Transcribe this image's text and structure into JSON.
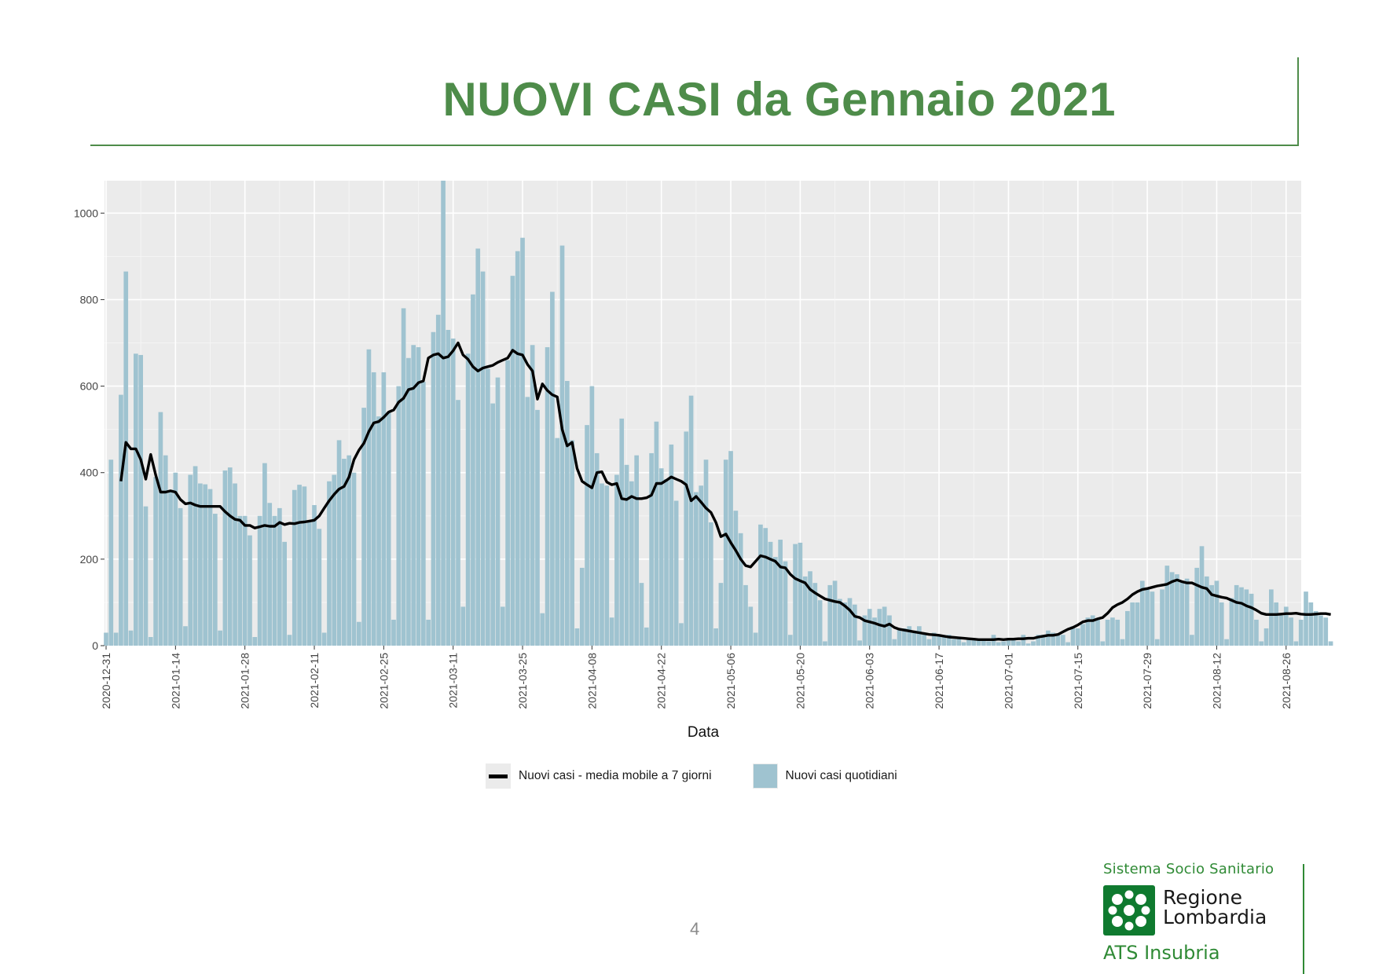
{
  "slide": {
    "title": "NUOVI CASI da Gennaio 2021",
    "page_number": "4"
  },
  "logo": {
    "tagline": "Sistema Socio Sanitario",
    "name_line1": "Regione",
    "name_line2": "Lombardia",
    "sub": "ATS Insubria",
    "brand_color": "#0f7a2f",
    "icon": "regione-lombardia-rosa-camuna-icon"
  },
  "legend": {
    "line_label": "Nuovi casi - media mobile a 7 giorni",
    "bar_label": "Nuovi casi quotidiani"
  },
  "colors": {
    "title": "#4e8c4a",
    "bars": "#9fc3d0",
    "line": "#000000",
    "panel": "#ebebeb",
    "grid": "#ffffff"
  },
  "chart_data": {
    "type": "bar",
    "xlabel": "Data",
    "ylabel": "",
    "ylim": [
      0,
      1075
    ],
    "yticks": [
      0,
      200,
      400,
      600,
      800,
      1000
    ],
    "x_tick_labels": [
      "2020-12-31",
      "2021-01-14",
      "2021-01-28",
      "2021-02-11",
      "2021-02-25",
      "2021-03-11",
      "2021-03-25",
      "2021-04-08",
      "2021-04-22",
      "2021-05-06",
      "2021-05-20",
      "2021-06-03",
      "2021-06-17",
      "2021-07-01",
      "2021-07-15",
      "2021-07-29",
      "2021-08-12",
      "2021-08-26"
    ],
    "grid": true,
    "legend_position": "bottom",
    "start_date": "2020-12-31",
    "series": [
      {
        "name": "Nuovi casi quotidiani",
        "type": "bar",
        "values": [
          30,
          430,
          30,
          580,
          865,
          35,
          675,
          672,
          322,
          20,
          390,
          540,
          440,
          360,
          400,
          318,
          45,
          395,
          415,
          375,
          373,
          362,
          305,
          35,
          405,
          412,
          375,
          300,
          300,
          255,
          20,
          300,
          422,
          330,
          300,
          318,
          240,
          25,
          360,
          372,
          368,
          285,
          325,
          270,
          30,
          380,
          395,
          475,
          432,
          440,
          400,
          55,
          550,
          685,
          632,
          530,
          632,
          540,
          60,
          600,
          780,
          665,
          695,
          690,
          610,
          60,
          725,
          765,
          1075,
          730,
          710,
          568,
          90,
          675,
          812,
          918,
          865,
          640,
          560,
          620,
          90,
          660,
          855,
          912,
          943,
          575,
          695,
          545,
          75,
          690,
          818,
          480,
          925,
          612,
          475,
          40,
          180,
          510,
          600,
          445,
          375,
          370,
          65,
          395,
          525,
          418,
          380,
          440,
          145,
          42,
          445,
          518,
          410,
          385,
          465,
          335,
          52,
          495,
          578,
          355,
          370,
          430,
          285,
          40,
          145,
          430,
          450,
          312,
          260,
          140,
          90,
          30,
          280,
          272,
          240,
          205,
          245,
          195,
          25,
          235,
          238,
          160,
          172,
          145,
          105,
          10,
          140,
          150,
          108,
          100,
          110,
          95,
          12,
          70,
          85,
          65,
          85,
          90,
          70,
          15,
          40,
          40,
          45,
          35,
          45,
          30,
          15,
          30,
          25,
          20,
          25,
          15,
          20,
          8,
          15,
          15,
          15,
          15,
          10,
          25,
          8,
          10,
          12,
          15,
          10,
          25,
          5,
          10,
          25,
          25,
          35,
          30,
          25,
          25,
          8,
          45,
          40,
          50,
          65,
          70,
          60,
          10,
          60,
          65,
          60,
          15,
          80,
          100,
          100,
          150,
          135,
          125,
          15,
          130,
          185,
          170,
          165,
          150,
          155,
          25,
          180,
          230,
          160,
          140,
          150,
          100,
          15,
          110,
          140,
          135,
          130,
          120,
          60,
          10,
          40,
          130,
          100,
          70,
          90,
          65,
          10,
          60,
          125,
          100,
          80,
          70,
          65,
          10
        ]
      },
      {
        "name": "Nuovi casi - media mobile a 7 giorni",
        "type": "line",
        "start_day": 3,
        "values": [
          380,
          470,
          455,
          455,
          430,
          385,
          442,
          395,
          355,
          355,
          358,
          355,
          338,
          328,
          330,
          325,
          322,
          322,
          322,
          322,
          322,
          310,
          300,
          292,
          290,
          278,
          278,
          272,
          275,
          278,
          276,
          276,
          285,
          280,
          283,
          282,
          285,
          286,
          288,
          290,
          300,
          318,
          335,
          350,
          362,
          368,
          390,
          430,
          452,
          468,
          495,
          515,
          518,
          528,
          540,
          545,
          563,
          572,
          592,
          595,
          608,
          612,
          665,
          672,
          675,
          665,
          668,
          682,
          700,
          672,
          662,
          645,
          635,
          642,
          645,
          648,
          655,
          660,
          665,
          683,
          675,
          672,
          650,
          635,
          570,
          605,
          590,
          580,
          575,
          500,
          462,
          470,
          410,
          380,
          372,
          365,
          400,
          402,
          378,
          372,
          375,
          340,
          338,
          345,
          340,
          340,
          342,
          348,
          375,
          375,
          382,
          390,
          385,
          380,
          372,
          335,
          345,
          332,
          318,
          308,
          285,
          252,
          258,
          238,
          220,
          200,
          185,
          182,
          195,
          208,
          205,
          200,
          195,
          182,
          180,
          165,
          155,
          150,
          145,
          130,
          122,
          115,
          108,
          105,
          102,
          100,
          92,
          82,
          68,
          65,
          58,
          55,
          52,
          48,
          45,
          50,
          42,
          38,
          36,
          34,
          32,
          30,
          28,
          26,
          25,
          24,
          22,
          20,
          19,
          18,
          17,
          16,
          15,
          14,
          14,
          14,
          14,
          15,
          14,
          15,
          15,
          16,
          16,
          17,
          17,
          20,
          22,
          24,
          24,
          26,
          32,
          38,
          42,
          48,
          55,
          58,
          58,
          62,
          65,
          75,
          88,
          95,
          100,
          108,
          118,
          125,
          130,
          132,
          135,
          138,
          140,
          142,
          148,
          152,
          148,
          145,
          145,
          140,
          135,
          132,
          118,
          115,
          112,
          110,
          105,
          100,
          98,
          92,
          88,
          82,
          75,
          72,
          72,
          72,
          73,
          74,
          74,
          75,
          73,
          72,
          72,
          73,
          74,
          74,
          72
        ]
      }
    ]
  }
}
